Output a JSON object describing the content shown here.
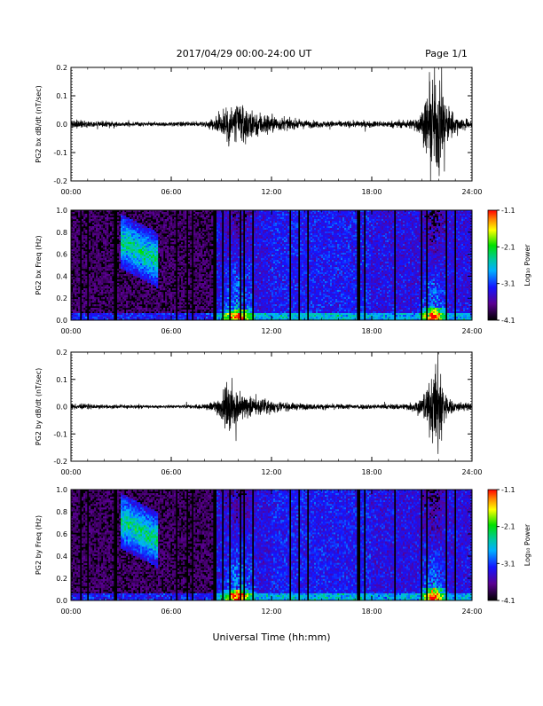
{
  "header": {
    "title": "2017/04/29  00:00-24:00 UT",
    "page": "Page 1/1"
  },
  "footer": {
    "xlabel": "Universal Time (hh:mm)"
  },
  "chart_data": [
    {
      "id": "bx-dbdt",
      "type": "line",
      "ylabel": "PG2 bx dB/dt (nT/sec)",
      "ylim": [
        -0.2,
        0.2
      ],
      "yticks": [
        "0.2",
        "0.1",
        "0.0",
        "-0.1",
        "-0.2"
      ],
      "ytick_values": [
        0.2,
        0.1,
        0.0,
        -0.1,
        -0.2
      ],
      "xlim": [
        "00:00",
        "24:00"
      ],
      "xticks": [
        "00:00",
        "06:00",
        "12:00",
        "18:00",
        "24:00"
      ],
      "envelope": {
        "x_hours": [
          0,
          1,
          2,
          3,
          4,
          5,
          6,
          7,
          8,
          8.5,
          9,
          9.5,
          10,
          10.5,
          11,
          11.5,
          12,
          12.5,
          13,
          14,
          15,
          16,
          17,
          18,
          19,
          20,
          20.5,
          21,
          21.5,
          22,
          22.5,
          23,
          24
        ],
        "amplitude_nT_s": [
          0.018,
          0.012,
          0.01,
          0.008,
          0.008,
          0.007,
          0.008,
          0.008,
          0.01,
          0.02,
          0.05,
          0.09,
          0.08,
          0.06,
          0.05,
          0.045,
          0.035,
          0.025,
          0.02,
          0.015,
          0.012,
          0.012,
          0.012,
          0.012,
          0.012,
          0.015,
          0.02,
          0.05,
          0.16,
          0.2,
          0.08,
          0.03,
          0.015
        ]
      }
    },
    {
      "id": "bx-freq",
      "type": "heatmap",
      "ylabel": "PG2 bx Freq (Hz)",
      "ylim": [
        0.0,
        1.0
      ],
      "yticks": [
        "1.0",
        "0.8",
        "0.6",
        "0.4",
        "0.2",
        "0.0"
      ],
      "ytick_values": [
        1.0,
        0.8,
        0.6,
        0.4,
        0.2,
        0.0
      ],
      "xlim": [
        "00:00",
        "24:00"
      ],
      "xticks": [
        "00:00",
        "06:00",
        "12:00",
        "18:00",
        "24:00"
      ],
      "colorbar": {
        "label": "Log₁₀ Power",
        "range": [
          -4.1,
          -1.1
        ],
        "ticks": [
          "-1.1",
          "-2.1",
          "-3.1",
          "-4.1"
        ],
        "tick_values": [
          -1.1,
          -2.1,
          -3.1,
          -4.1
        ]
      }
    },
    {
      "id": "by-dbdt",
      "type": "line",
      "ylabel": "PG2 by dB/dt (nT/sec)",
      "ylim": [
        -0.2,
        0.2
      ],
      "yticks": [
        "0.2",
        "0.1",
        "0.0",
        "-0.1",
        "-0.2"
      ],
      "ytick_values": [
        0.2,
        0.1,
        0.0,
        -0.1,
        -0.2
      ],
      "xlim": [
        "00:00",
        "24:00"
      ],
      "xticks": [
        "00:00",
        "06:00",
        "12:00",
        "18:00",
        "24:00"
      ],
      "envelope": {
        "x_hours": [
          0,
          1,
          2,
          3,
          4,
          5,
          6,
          7,
          8,
          8.5,
          9,
          9.5,
          10,
          10.5,
          11,
          11.5,
          12,
          12.5,
          13,
          14,
          15,
          16,
          17,
          18,
          19,
          20,
          20.5,
          21,
          21.5,
          22,
          22.5,
          23,
          24
        ],
        "amplitude_nT_s": [
          0.012,
          0.01,
          0.008,
          0.007,
          0.007,
          0.006,
          0.006,
          0.007,
          0.01,
          0.02,
          0.05,
          0.1,
          0.06,
          0.045,
          0.035,
          0.03,
          0.025,
          0.02,
          0.015,
          0.012,
          0.01,
          0.01,
          0.01,
          0.01,
          0.01,
          0.012,
          0.02,
          0.04,
          0.1,
          0.2,
          0.04,
          0.02,
          0.012
        ]
      }
    },
    {
      "id": "by-freq",
      "type": "heatmap",
      "ylabel": "PG2 by Freq (Hz)",
      "ylim": [
        0.0,
        1.0
      ],
      "yticks": [
        "1.0",
        "0.8",
        "0.6",
        "0.4",
        "0.2",
        "0.0"
      ],
      "ytick_values": [
        1.0,
        0.8,
        0.6,
        0.4,
        0.2,
        0.0
      ],
      "xlim": [
        "00:00",
        "24:00"
      ],
      "xticks": [
        "00:00",
        "06:00",
        "12:00",
        "18:00",
        "24:00"
      ],
      "colorbar": {
        "label": "Log₁₀ Power",
        "range": [
          -4.1,
          -1.1
        ],
        "ticks": [
          "-1.1",
          "-2.1",
          "-3.1",
          "-4.1"
        ],
        "tick_values": [
          -1.1,
          -2.1,
          -3.1,
          -4.1
        ]
      }
    }
  ]
}
